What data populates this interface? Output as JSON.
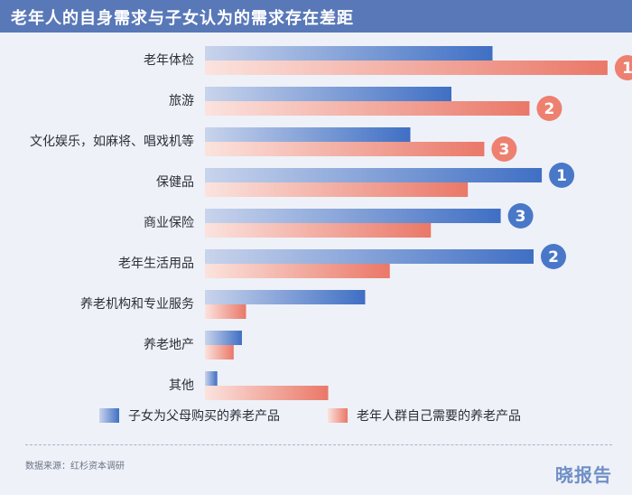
{
  "header": {
    "title": "老年人的自身需求与子女认为的需求存在差距"
  },
  "chart_data": {
    "type": "bar",
    "orientation": "horizontal",
    "title": "老年人的自身需求与子女认为的需求存在差距",
    "categories": [
      "老年体检",
      "旅游",
      "文化娱乐，如麻将、唱戏机等",
      "保健品",
      "商业保险",
      "老年生活用品",
      "养老机构和专业服务",
      "养老地产",
      "其他"
    ],
    "xlim": [
      0,
      100
    ],
    "series": [
      {
        "name": "子女为父母购买的养老产品",
        "color": "#4a78c8",
        "values": [
          70,
          60,
          50,
          82,
          72,
          80,
          39,
          9,
          3
        ],
        "ranks": [
          null,
          null,
          null,
          1,
          3,
          2,
          null,
          null,
          null
        ]
      },
      {
        "name": "老年人群自己需要的养老产品",
        "color": "#ee8070",
        "values": [
          98,
          79,
          68,
          64,
          55,
          45,
          10,
          7,
          30
        ],
        "ranks": [
          1,
          2,
          3,
          null,
          null,
          null,
          null,
          null,
          null
        ]
      }
    ],
    "legend": {
      "position": "bottom"
    },
    "grid": false
  },
  "footer": {
    "source": "数据来源：红杉资本调研",
    "brand": "晓报告"
  }
}
